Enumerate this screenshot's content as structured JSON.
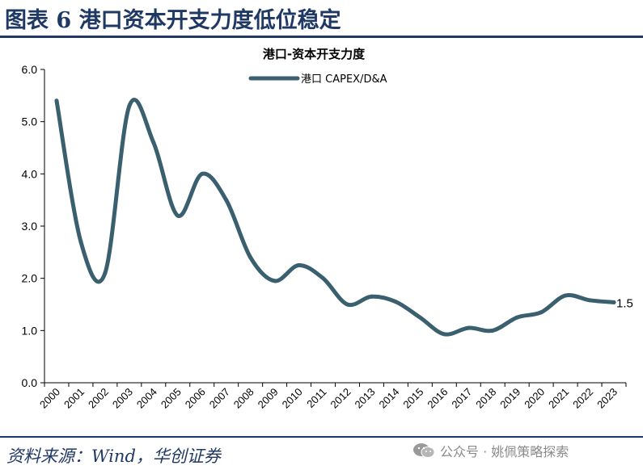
{
  "header": {
    "title": "图表 6 港口资本开支力度低位稳定"
  },
  "footer": {
    "source": "资料来源：Wind，华创证券",
    "watermark": "公众号 · 姚佩策略探索"
  },
  "colors": {
    "title": "#1f3864",
    "series": "#3a5f6e"
  },
  "chart_data": {
    "type": "line",
    "title": "港口-资本开支力度",
    "xlabel": "",
    "ylabel": "",
    "ylim": [
      0,
      6
    ],
    "yticks": [
      "0.0",
      "1.0",
      "2.0",
      "3.0",
      "4.0",
      "5.0",
      "6.0"
    ],
    "grid": false,
    "legend": "top",
    "categories": [
      "2000",
      "2001",
      "2002",
      "2003",
      "2004",
      "2005",
      "2006",
      "2007",
      "2008",
      "2009",
      "2010",
      "2011",
      "2012",
      "2013",
      "2014",
      "2015",
      "2016",
      "2017",
      "2018",
      "2019",
      "2020",
      "2021",
      "2022",
      "2023"
    ],
    "series": [
      {
        "name": "港口 CAPEX/D&A",
        "values": [
          5.4,
          2.7,
          2.1,
          5.3,
          4.6,
          3.2,
          4.0,
          3.5,
          2.4,
          1.95,
          2.25,
          2.0,
          1.5,
          1.65,
          1.55,
          1.25,
          0.93,
          1.05,
          1.0,
          1.25,
          1.35,
          1.67,
          1.58,
          1.54
        ]
      }
    ],
    "annotation": {
      "text": "1.5",
      "index": 23
    }
  }
}
